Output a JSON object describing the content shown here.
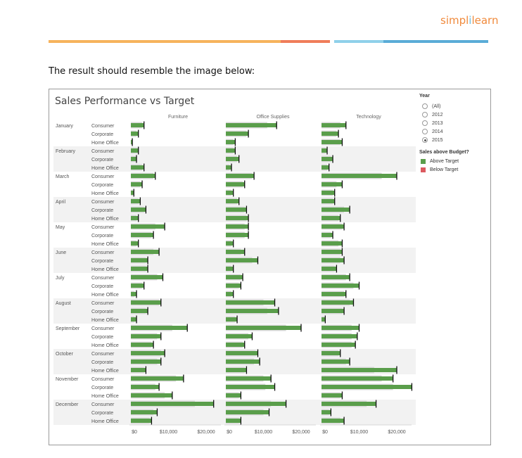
{
  "logo": {
    "part1": "simpl",
    "part2": "i",
    "part3": "learn"
  },
  "intro_text": "The result should resemble the image below:",
  "colors": {
    "above": "#5a9e4b",
    "below": "#dc5a5f",
    "target_bg": "#d9d9d9",
    "band": "#f2f2f2",
    "orange": "#f6b35c",
    "red_orange": "#ef7d5a",
    "light_blue": "#8fd0ea",
    "blue": "#5aacd7"
  },
  "filters": {
    "year_title": "Year",
    "year_options": [
      {
        "label": "(All)",
        "selected": false
      },
      {
        "label": "2012",
        "selected": false
      },
      {
        "label": "2013",
        "selected": false
      },
      {
        "label": "2014",
        "selected": false
      },
      {
        "label": "2015",
        "selected": true
      }
    ],
    "legend_title": "Sales above Budget?",
    "legend_items": [
      {
        "label": "Above Target",
        "color": "#5a9e4b"
      },
      {
        "label": "Below Target",
        "color": "#dc5a5f"
      }
    ]
  },
  "chart_data": {
    "type": "bar",
    "title": "Sales Performance vs Target",
    "columns": [
      "Furniture",
      "Office Supplies",
      "Technology"
    ],
    "months": [
      "January",
      "February",
      "March",
      "April",
      "May",
      "June",
      "July",
      "August",
      "September",
      "October",
      "November",
      "December"
    ],
    "segments": [
      "Consumer",
      "Corporate",
      "Home Office"
    ],
    "x_ticks": [
      "$0",
      "$10,000",
      "$20,000"
    ],
    "xlim": [
      0,
      25000
    ],
    "rows": [
      {
        "month": "January",
        "segment": "Consumer",
        "Furniture": [
          3500,
          3000
        ],
        "Office Supplies": [
          13500,
          11000
        ],
        "Technology": [
          6500,
          5000
        ]
      },
      {
        "month": "January",
        "segment": "Corporate",
        "Furniture": [
          2000,
          1500
        ],
        "Office Supplies": [
          6000,
          5500
        ],
        "Technology": [
          4500,
          4000
        ]
      },
      {
        "month": "January",
        "segment": "Home Office",
        "Furniture": [
          400,
          300
        ],
        "Office Supplies": [
          2500,
          2000
        ],
        "Technology": [
          5500,
          5000
        ]
      },
      {
        "month": "February",
        "segment": "Consumer",
        "Furniture": [
          2000,
          1800
        ],
        "Office Supplies": [
          2500,
          2000
        ],
        "Technology": [
          1500,
          1200
        ]
      },
      {
        "month": "February",
        "segment": "Corporate",
        "Furniture": [
          1500,
          1300
        ],
        "Office Supplies": [
          3500,
          3000
        ],
        "Technology": [
          3000,
          2500
        ]
      },
      {
        "month": "February",
        "segment": "Home Office",
        "Furniture": [
          3500,
          3000
        ],
        "Office Supplies": [
          1500,
          1000
        ],
        "Technology": [
          2000,
          1500
        ]
      },
      {
        "month": "March",
        "segment": "Consumer",
        "Furniture": [
          6500,
          6000
        ],
        "Office Supplies": [
          7500,
          7000
        ],
        "Technology": [
          20000,
          16000
        ]
      },
      {
        "month": "March",
        "segment": "Corporate",
        "Furniture": [
          3000,
          2500
        ],
        "Office Supplies": [
          5000,
          4500
        ],
        "Technology": [
          5500,
          4000
        ]
      },
      {
        "month": "March",
        "segment": "Home Office",
        "Furniture": [
          800,
          600
        ],
        "Office Supplies": [
          2000,
          1500
        ],
        "Technology": [
          3500,
          3000
        ]
      },
      {
        "month": "April",
        "segment": "Consumer",
        "Furniture": [
          2500,
          2000
        ],
        "Office Supplies": [
          3500,
          3000
        ],
        "Technology": [
          3500,
          3000
        ]
      },
      {
        "month": "April",
        "segment": "Corporate",
        "Furniture": [
          4000,
          3500
        ],
        "Office Supplies": [
          5500,
          5000
        ],
        "Technology": [
          7500,
          6000
        ]
      },
      {
        "month": "April",
        "segment": "Home Office",
        "Furniture": [
          2000,
          1500
        ],
        "Office Supplies": [
          6000,
          5500
        ],
        "Technology": [
          5000,
          4500
        ]
      },
      {
        "month": "May",
        "segment": "Consumer",
        "Furniture": [
          9000,
          6500
        ],
        "Office Supplies": [
          6000,
          5000
        ],
        "Technology": [
          6000,
          5500
        ]
      },
      {
        "month": "May",
        "segment": "Corporate",
        "Furniture": [
          6000,
          5500
        ],
        "Office Supplies": [
          6000,
          5000
        ],
        "Technology": [
          3000,
          2500
        ]
      },
      {
        "month": "May",
        "segment": "Home Office",
        "Furniture": [
          2000,
          1500
        ],
        "Office Supplies": [
          2000,
          1500
        ],
        "Technology": [
          5500,
          4500
        ]
      },
      {
        "month": "June",
        "segment": "Consumer",
        "Furniture": [
          7500,
          6000
        ],
        "Office Supplies": [
          5000,
          4000
        ],
        "Technology": [
          5500,
          5000
        ]
      },
      {
        "month": "June",
        "segment": "Corporate",
        "Furniture": [
          4500,
          4000
        ],
        "Office Supplies": [
          8500,
          7000
        ],
        "Technology": [
          6000,
          5000
        ]
      },
      {
        "month": "June",
        "segment": "Home Office",
        "Furniture": [
          4500,
          4000
        ],
        "Office Supplies": [
          2000,
          1500
        ],
        "Technology": [
          4000,
          3500
        ]
      },
      {
        "month": "July",
        "segment": "Consumer",
        "Furniture": [
          8500,
          7000
        ],
        "Office Supplies": [
          4500,
          4000
        ],
        "Technology": [
          7500,
          6500
        ]
      },
      {
        "month": "July",
        "segment": "Corporate",
        "Furniture": [
          3500,
          3000
        ],
        "Office Supplies": [
          4000,
          3500
        ],
        "Technology": [
          10000,
          8500
        ]
      },
      {
        "month": "July",
        "segment": "Home Office",
        "Furniture": [
          1500,
          1000
        ],
        "Office Supplies": [
          2000,
          1500
        ],
        "Technology": [
          6500,
          6000
        ]
      },
      {
        "month": "August",
        "segment": "Consumer",
        "Furniture": [
          8000,
          7500
        ],
        "Office Supplies": [
          13000,
          10000
        ],
        "Technology": [
          8500,
          7500
        ]
      },
      {
        "month": "August",
        "segment": "Corporate",
        "Furniture": [
          4500,
          4000
        ],
        "Office Supplies": [
          14000,
          11000
        ],
        "Technology": [
          6000,
          5500
        ]
      },
      {
        "month": "August",
        "segment": "Home Office",
        "Furniture": [
          1500,
          1000
        ],
        "Office Supplies": [
          3000,
          2500
        ],
        "Technology": [
          1000,
          800
        ]
      },
      {
        "month": "September",
        "segment": "Consumer",
        "Furniture": [
          15000,
          11000
        ],
        "Office Supplies": [
          20000,
          16000
        ],
        "Technology": [
          10000,
          8000
        ]
      },
      {
        "month": "September",
        "segment": "Corporate",
        "Furniture": [
          8000,
          7000
        ],
        "Office Supplies": [
          7000,
          6000
        ],
        "Technology": [
          9500,
          8000
        ]
      },
      {
        "month": "September",
        "segment": "Home Office",
        "Furniture": [
          6000,
          5500
        ],
        "Office Supplies": [
          5000,
          4500
        ],
        "Technology": [
          9000,
          8000
        ]
      },
      {
        "month": "October",
        "segment": "Consumer",
        "Furniture": [
          9000,
          8000
        ],
        "Office Supplies": [
          8500,
          8000
        ],
        "Technology": [
          5000,
          4500
        ]
      },
      {
        "month": "October",
        "segment": "Corporate",
        "Furniture": [
          8000,
          7000
        ],
        "Office Supplies": [
          9000,
          7500
        ],
        "Technology": [
          7500,
          6500
        ]
      },
      {
        "month": "October",
        "segment": "Home Office",
        "Furniture": [
          4000,
          3500
        ],
        "Office Supplies": [
          5500,
          5000
        ],
        "Technology": [
          20000,
          14000
        ]
      },
      {
        "month": "November",
        "segment": "Consumer",
        "Furniture": [
          14000,
          12000
        ],
        "Office Supplies": [
          12000,
          10000
        ],
        "Technology": [
          19000,
          16000
        ]
      },
      {
        "month": "November",
        "segment": "Corporate",
        "Furniture": [
          7500,
          6500
        ],
        "Office Supplies": [
          13000,
          10500
        ],
        "Technology": [
          24000,
          19000
        ]
      },
      {
        "month": "November",
        "segment": "Home Office",
        "Furniture": [
          11000,
          9000
        ],
        "Office Supplies": [
          4000,
          3500
        ],
        "Technology": [
          5500,
          5000
        ]
      },
      {
        "month": "December",
        "segment": "Consumer",
        "Furniture": [
          22000,
          17000
        ],
        "Office Supplies": [
          16000,
          12000
        ],
        "Technology": [
          14500,
          12000
        ]
      },
      {
        "month": "December",
        "segment": "Corporate",
        "Furniture": [
          7000,
          6000
        ],
        "Office Supplies": [
          11500,
          10000
        ],
        "Technology": [
          2500,
          2000
        ]
      },
      {
        "month": "December",
        "segment": "Home Office",
        "Furniture": [
          5500,
          5000
        ],
        "Office Supplies": [
          4000,
          3500
        ],
        "Technology": [
          6000,
          5000
        ]
      }
    ]
  }
}
